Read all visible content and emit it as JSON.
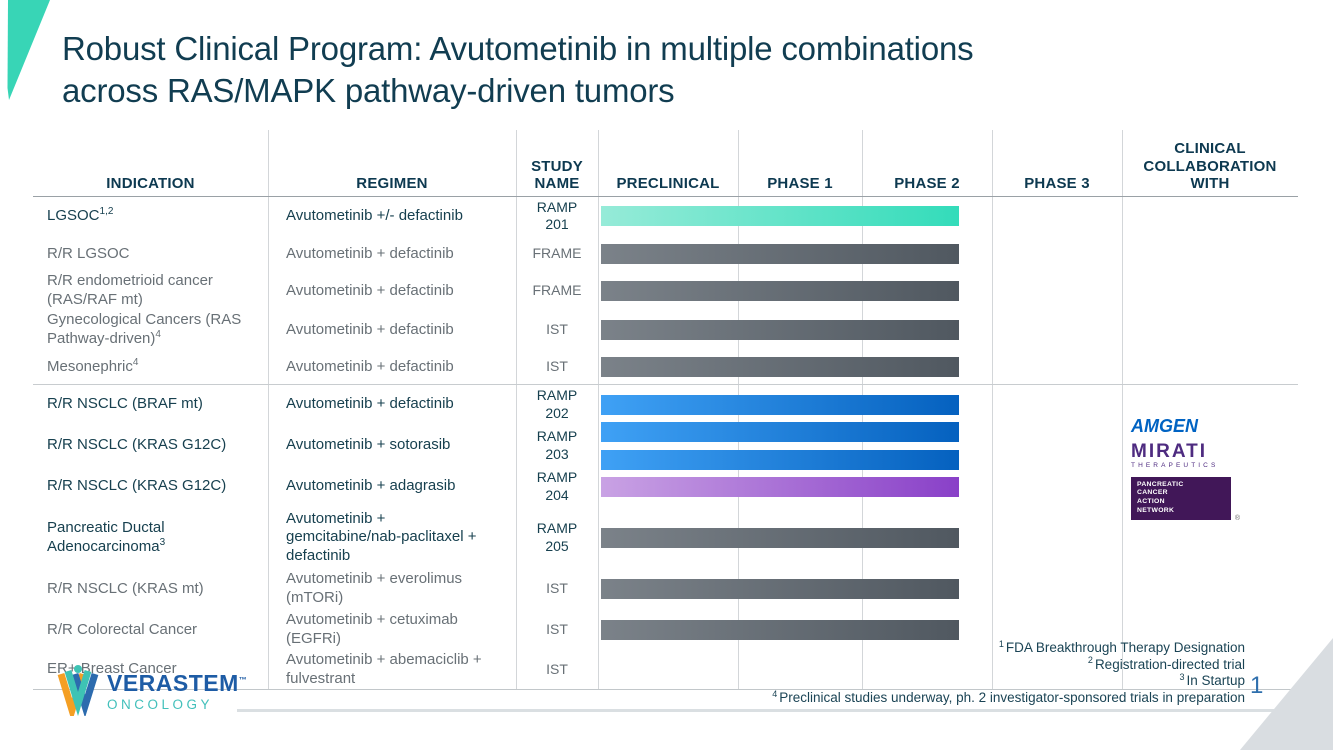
{
  "slide": {
    "title": "Robust Clinical Program: Avutometinib in multiple combinations\nacross RAS/MAPK pathway-driven tumors",
    "page_number": "1"
  },
  "table": {
    "headers": [
      "INDICATION",
      "REGIMEN",
      "STUDY NAME",
      "PRECLINICAL",
      "PHASE 1",
      "PHASE 2",
      "PHASE 3",
      "CLINICAL COLLABORATION WITH"
    ],
    "bar_range": {
      "start_column": "PRECLINICAL",
      "end_column": "PHASE 2"
    },
    "rows": [
      {
        "indication": "LGSOC",
        "indication_sup": "1,2",
        "regimen": "Avutometinib +/- defactinib",
        "study": "RAMP 201",
        "bars": [
          "teal"
        ],
        "emphasis": true
      },
      {
        "indication": "R/R LGSOC",
        "indication_sup": "",
        "regimen": "Avutometinib + defactinib",
        "study": "FRAME",
        "bars": [
          "gray"
        ],
        "emphasis": false
      },
      {
        "indication": "R/R endometrioid cancer (RAS/RAF mt)",
        "indication_sup": "",
        "regimen": "Avutometinib + defactinib",
        "study": "FRAME",
        "bars": [
          "gray"
        ],
        "emphasis": false
      },
      {
        "indication": "Gynecological Cancers (RAS Pathway-driven)",
        "indication_sup": "4",
        "regimen": "Avutometinib + defactinib",
        "study": "IST",
        "bars": [
          "gray"
        ],
        "emphasis": false
      },
      {
        "indication": "Mesonephric",
        "indication_sup": "4",
        "regimen": "Avutometinib + defactinib",
        "study": "IST",
        "bars": [
          "gray"
        ],
        "emphasis": false
      },
      {
        "indication": "R/R NSCLC (BRAF mt)",
        "indication_sup": "",
        "regimen": "Avutometinib + defactinib",
        "study": "RAMP 202",
        "bars": [
          "blue"
        ],
        "emphasis": true
      },
      {
        "indication": "R/R NSCLC (KRAS G12C)",
        "indication_sup": "",
        "regimen": "Avutometinib + sotorasib",
        "study": "RAMP 203",
        "bars": [
          "blue",
          "blue"
        ],
        "emphasis": true
      },
      {
        "indication": "R/R NSCLC (KRAS G12C)",
        "indication_sup": "",
        "regimen": "Avutometinib + adagrasib",
        "study": "RAMP 204",
        "bars": [
          "purple"
        ],
        "emphasis": true
      },
      {
        "indication": "Pancreatic Ductal Adenocarcinoma",
        "indication_sup": "3",
        "regimen": "Avutometinib + gemcitabine/nab-paclitaxel + defactinib",
        "study": "RAMP 205",
        "bars": [
          "gray"
        ],
        "emphasis": true
      },
      {
        "indication": "R/R NSCLC (KRAS mt)",
        "indication_sup": "",
        "regimen": "Avutometinib + everolimus (mTORi)",
        "study": "IST",
        "bars": [
          "gray"
        ],
        "emphasis": false
      },
      {
        "indication": "R/R Colorectal Cancer",
        "indication_sup": "",
        "regimen": "Avutometinib + cetuximab (EGFRi)",
        "study": "IST",
        "bars": [
          "gray"
        ],
        "emphasis": false
      },
      {
        "indication": "ER+ Breast Cancer",
        "indication_sup": "",
        "regimen": "Avutometinib + abemaciclib + fulvestrant",
        "study": "IST",
        "bars": [],
        "emphasis": false
      }
    ]
  },
  "collaborators": {
    "amgen": {
      "label": "AMGEN"
    },
    "mirati": {
      "label": "MIRATI",
      "sublabel": "THERAPEUTICS"
    },
    "pancan": {
      "lines": [
        "PANCREATIC",
        "CANCER",
        "ACTION",
        "NETWORK"
      ],
      "registered_mark": "®"
    }
  },
  "footnotes": [
    {
      "sup": "1",
      "text": "FDA Breakthrough Therapy Designation"
    },
    {
      "sup": "2",
      "text": "Registration-directed trial"
    },
    {
      "sup": "3",
      "text": "In Startup"
    },
    {
      "sup": "4",
      "text": "Preclinical studies underway, ph. 2 investigator-sponsored trials in preparation"
    }
  ],
  "verastem_logo": {
    "name": "VERASTEM",
    "trademark": "™",
    "division": "ONCOLOGY"
  },
  "colors": {
    "accent_teal": "#38d5b6",
    "title_navy": "#113d51",
    "row_dark_text": "#17404f",
    "row_gray_text": "#687076",
    "bar_teal": [
      "#96ebd8",
      "#33dcba"
    ],
    "bar_gray": [
      "#7b8289",
      "#505860"
    ],
    "bar_blue": [
      "#3fa1f5",
      "#0561bf"
    ],
    "bar_purple": [
      "#c9a2e4",
      "#8940c8"
    ],
    "amgen_blue": "#0063c3",
    "mirati_purple": "#4e2b80",
    "pancan_purple": "#411758",
    "verastem_blue": "#1e5ca5",
    "verastem_teal": "#43c0bb",
    "page_number_blue": "#2f6fad"
  }
}
